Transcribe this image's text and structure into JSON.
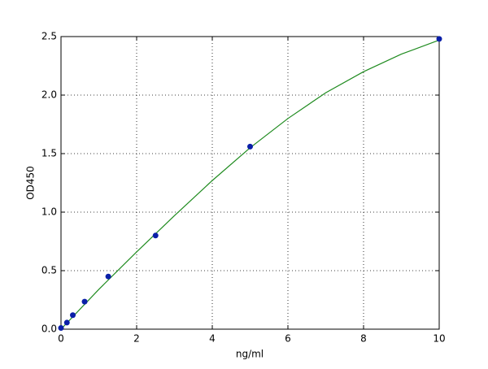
{
  "chart_data": {
    "type": "scatter",
    "xlabel": "ng/ml",
    "ylabel": "OD450",
    "xlim": [
      0,
      10
    ],
    "ylim": [
      0,
      2.5
    ],
    "xticks": [
      0,
      2,
      4,
      6,
      8,
      10
    ],
    "yticks": [
      {
        "value": 0,
        "label": "0.0"
      },
      0.5,
      {
        "value": 1,
        "label": "1.0"
      },
      1.5,
      {
        "value": 2,
        "label": "2.0"
      },
      2.5
    ],
    "grid": true,
    "series": [
      {
        "type": "line",
        "color": "#1f8b1f",
        "x": [
          0,
          1,
          2,
          3,
          4,
          5,
          6,
          7,
          8,
          9,
          10
        ],
        "values": [
          0,
          0.34,
          0.66,
          0.97,
          1.27,
          1.55,
          1.8,
          2.02,
          2.2,
          2.35,
          2.47
        ]
      },
      {
        "type": "scatter",
        "color": "#0a1fa8",
        "x": [
          0,
          0.156,
          0.3125,
          0.625,
          1.25,
          2.5,
          5,
          10
        ],
        "values": [
          0.01,
          0.056,
          0.12,
          0.235,
          0.45,
          0.8,
          1.56,
          2.48
        ]
      }
    ]
  }
}
